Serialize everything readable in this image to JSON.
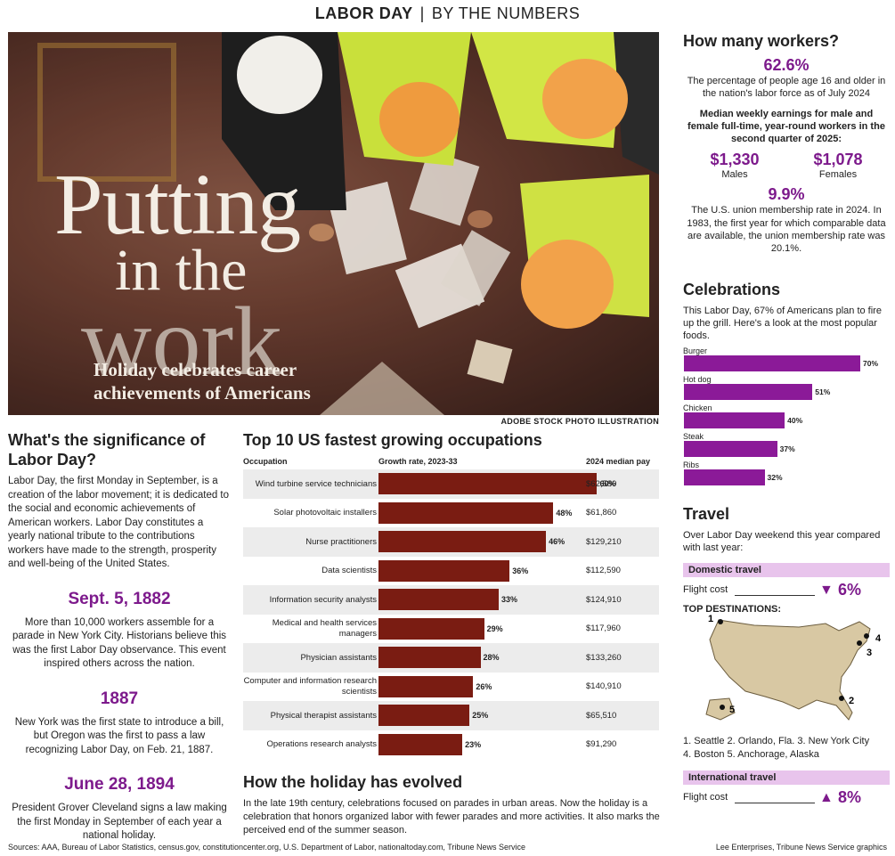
{
  "header": {
    "left": "LABOR DAY",
    "sep": "|",
    "right": "BY THE NUMBERS"
  },
  "hero": {
    "title1": "Putting",
    "title2": "in the",
    "title3": "work",
    "subtitle": "Holiday celebrates career achievements of Americans",
    "credit": "ADOBE STOCK PHOTO ILLUSTRATION"
  },
  "significance": {
    "title": "What's the significance of Labor Day?",
    "body": "Labor Day, the first Monday in September, is a creation of the labor movement; it is dedicated to the social and economic achievements of American workers. Labor Day constitutes a yearly national tribute to the contributions workers have made to the strength, prosperity and well-being of the United States.",
    "events": [
      {
        "date": "Sept. 5, 1882",
        "text": "More than 10,000 workers assemble for a parade in New York City. Historians believe this was the first Labor Day observance. This event inspired others across the nation."
      },
      {
        "date": "1887",
        "text": "New York was the first state to introduce a bill, but Oregon was the first to pass a law recognizing Labor Day, on Feb. 21, 1887."
      },
      {
        "date": "June 28, 1894",
        "text": "President Grover Cleveland signs a law making the first Monday in September of each year a national holiday."
      }
    ]
  },
  "occupations": {
    "title": "Top 10 US fastest growing occupations",
    "col_occ": "Occupation",
    "col_growth": "Growth rate, 2023-33",
    "col_pay": "2024 median pay"
  },
  "chart_data": {
    "type": "bar",
    "categories": [
      "Wind turbine service technicians",
      "Solar photovoltaic installers",
      "Nurse practitioners",
      "Data scientists",
      "Information security analysts",
      "Medical and health services managers",
      "Physician assistants",
      "Computer and information research scientists",
      "Physical therapist assistants",
      "Operations research analysts"
    ],
    "values": [
      60,
      48,
      46,
      36,
      33,
      29,
      28,
      26,
      25,
      23
    ],
    "value_labels": [
      "60%",
      "48%",
      "46%",
      "36%",
      "33%",
      "29%",
      "28%",
      "26%",
      "25%",
      "23%"
    ],
    "pay": [
      "$62,580",
      "$61,860",
      "$129,210",
      "$112,590",
      "$124,910",
      "$117,960",
      "$133,260",
      "$140,910",
      "$65,510",
      "$91,290"
    ],
    "bar_color": "#7a1c12"
  },
  "evolved": {
    "title": "How the holiday has evolved",
    "body": "In the late 19th century, celebrations focused on parades in urban areas. Now the holiday is a celebration that honors organized labor with fewer parades and more activities. It also marks the perceived end of the summer season."
  },
  "workers": {
    "title": "How many workers?",
    "stat1": "62.6%",
    "stat1_text": "The percentage of people age 16 and older in the nation's labor force as of July 2024",
    "earnings_title": "Median weekly earnings for male and female full-time, year-round workers in the second quarter of 2025:",
    "males_value": "$1,330",
    "males_label": "Males",
    "females_value": "$1,078",
    "females_label": "Females",
    "stat2": "9.9%",
    "stat2_text": "The U.S. union membership rate in 2024. In 1983, the first year for which comparable data are available, the union membership rate was 20.1%."
  },
  "celebrations": {
    "title": "Celebrations",
    "intro": "This Labor Day, 67% of Americans plan to fire up the grill. Here's a look at the most popular foods.",
    "foods": [
      {
        "name": "Burger",
        "value": 70,
        "label": "70%"
      },
      {
        "name": "Hot dog",
        "value": 51,
        "label": "51%"
      },
      {
        "name": "Chicken",
        "value": 40,
        "label": "40%"
      },
      {
        "name": "Steak",
        "value": 37,
        "label": "37%"
      },
      {
        "name": "Ribs",
        "value": 32,
        "label": "32%"
      }
    ],
    "bar_color": "#8b1a98"
  },
  "travel": {
    "title": "Travel",
    "intro": "Over Labor Day weekend this year compared with last year:",
    "domestic_label": "Domestic travel",
    "domestic_flight_label": "Flight cost",
    "domestic_arrow": "▼",
    "domestic_value": "6%",
    "destinations_title": "TOP DESTINATIONS:",
    "dest_line1": "1. Seattle  2. Orlando, Fla.  3. New York City",
    "dest_line2": "4. Boston  5. Anchorage, Alaska",
    "markers": [
      "1",
      "2",
      "3",
      "4",
      "5"
    ],
    "intl_label": "International travel",
    "intl_flight_label": "Flight cost",
    "intl_arrow": "▲",
    "intl_value": "8%"
  },
  "footer": {
    "sources": "Sources: AAA, Bureau of Labor Statistics, census.gov, constitutioncenter.org, U.S. Department of Labor, nationaltoday.com, Tribune News Service",
    "credit": "Lee Enterprises, Tribune News Service graphics"
  }
}
